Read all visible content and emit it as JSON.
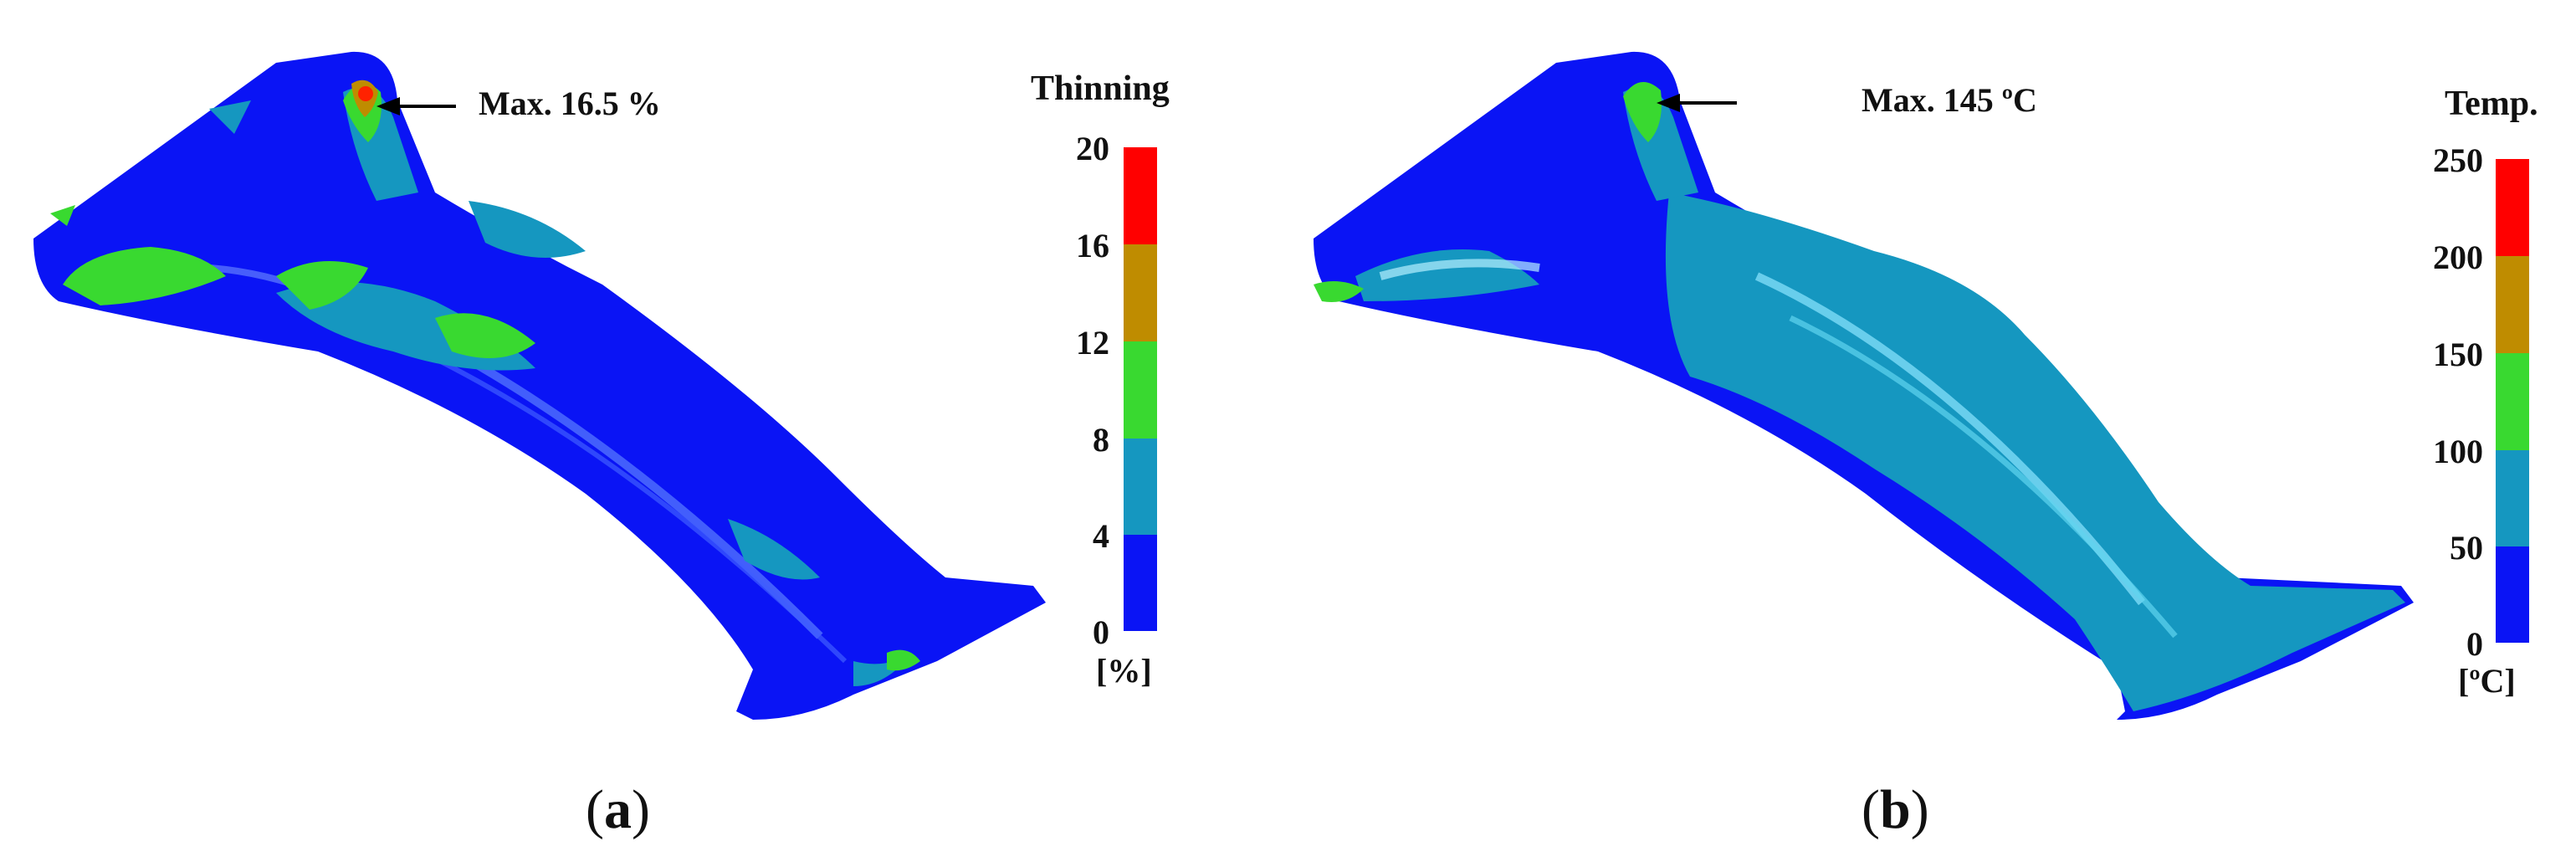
{
  "panels": [
    {
      "caption_letter": "a",
      "annotation": "Max. 16.5 %",
      "legend": {
        "title": "Thinning",
        "unit": "[%]",
        "ticks": [
          "20",
          "16",
          "12",
          "8",
          "4",
          "0"
        ],
        "colors": [
          "#ff0000",
          "#bf8c00",
          "#39d930",
          "#1597c0",
          "#0a14f5"
        ]
      }
    },
    {
      "caption_letter": "b",
      "annotation": "Max. 145 ºC",
      "legend": {
        "title": "Temp.",
        "unit": "[ºC]",
        "ticks": [
          "250",
          "200",
          "150",
          "100",
          "50",
          "0"
        ],
        "colors": [
          "#ff0000",
          "#bf8c00",
          "#39d930",
          "#1597c0",
          "#0a14f5"
        ]
      }
    }
  ]
}
